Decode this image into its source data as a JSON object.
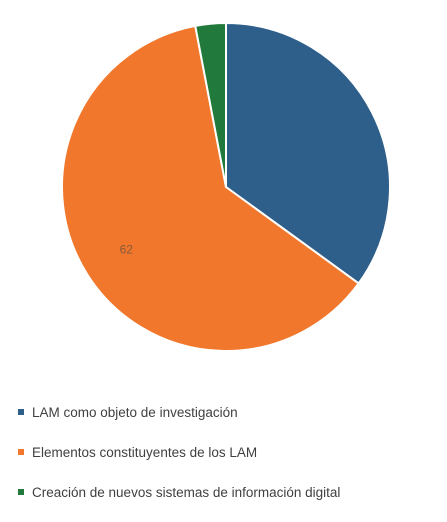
{
  "chart_data": {
    "type": "pie",
    "title": "",
    "slices": [
      {
        "name": "LAM como objeto de investigación",
        "value": 35,
        "color": "#2e5f8a",
        "label": ""
      },
      {
        "name": "Elementos constituyentes de los LAM",
        "value": 62,
        "color": "#f0772b",
        "label": "62"
      },
      {
        "name": "Creación de nuevos sistemas de información digital",
        "value": 3,
        "color": "#217a3b",
        "label": ""
      }
    ],
    "legend_position": "bottom",
    "start_angle_deg": 0,
    "direction": "clockwise"
  }
}
